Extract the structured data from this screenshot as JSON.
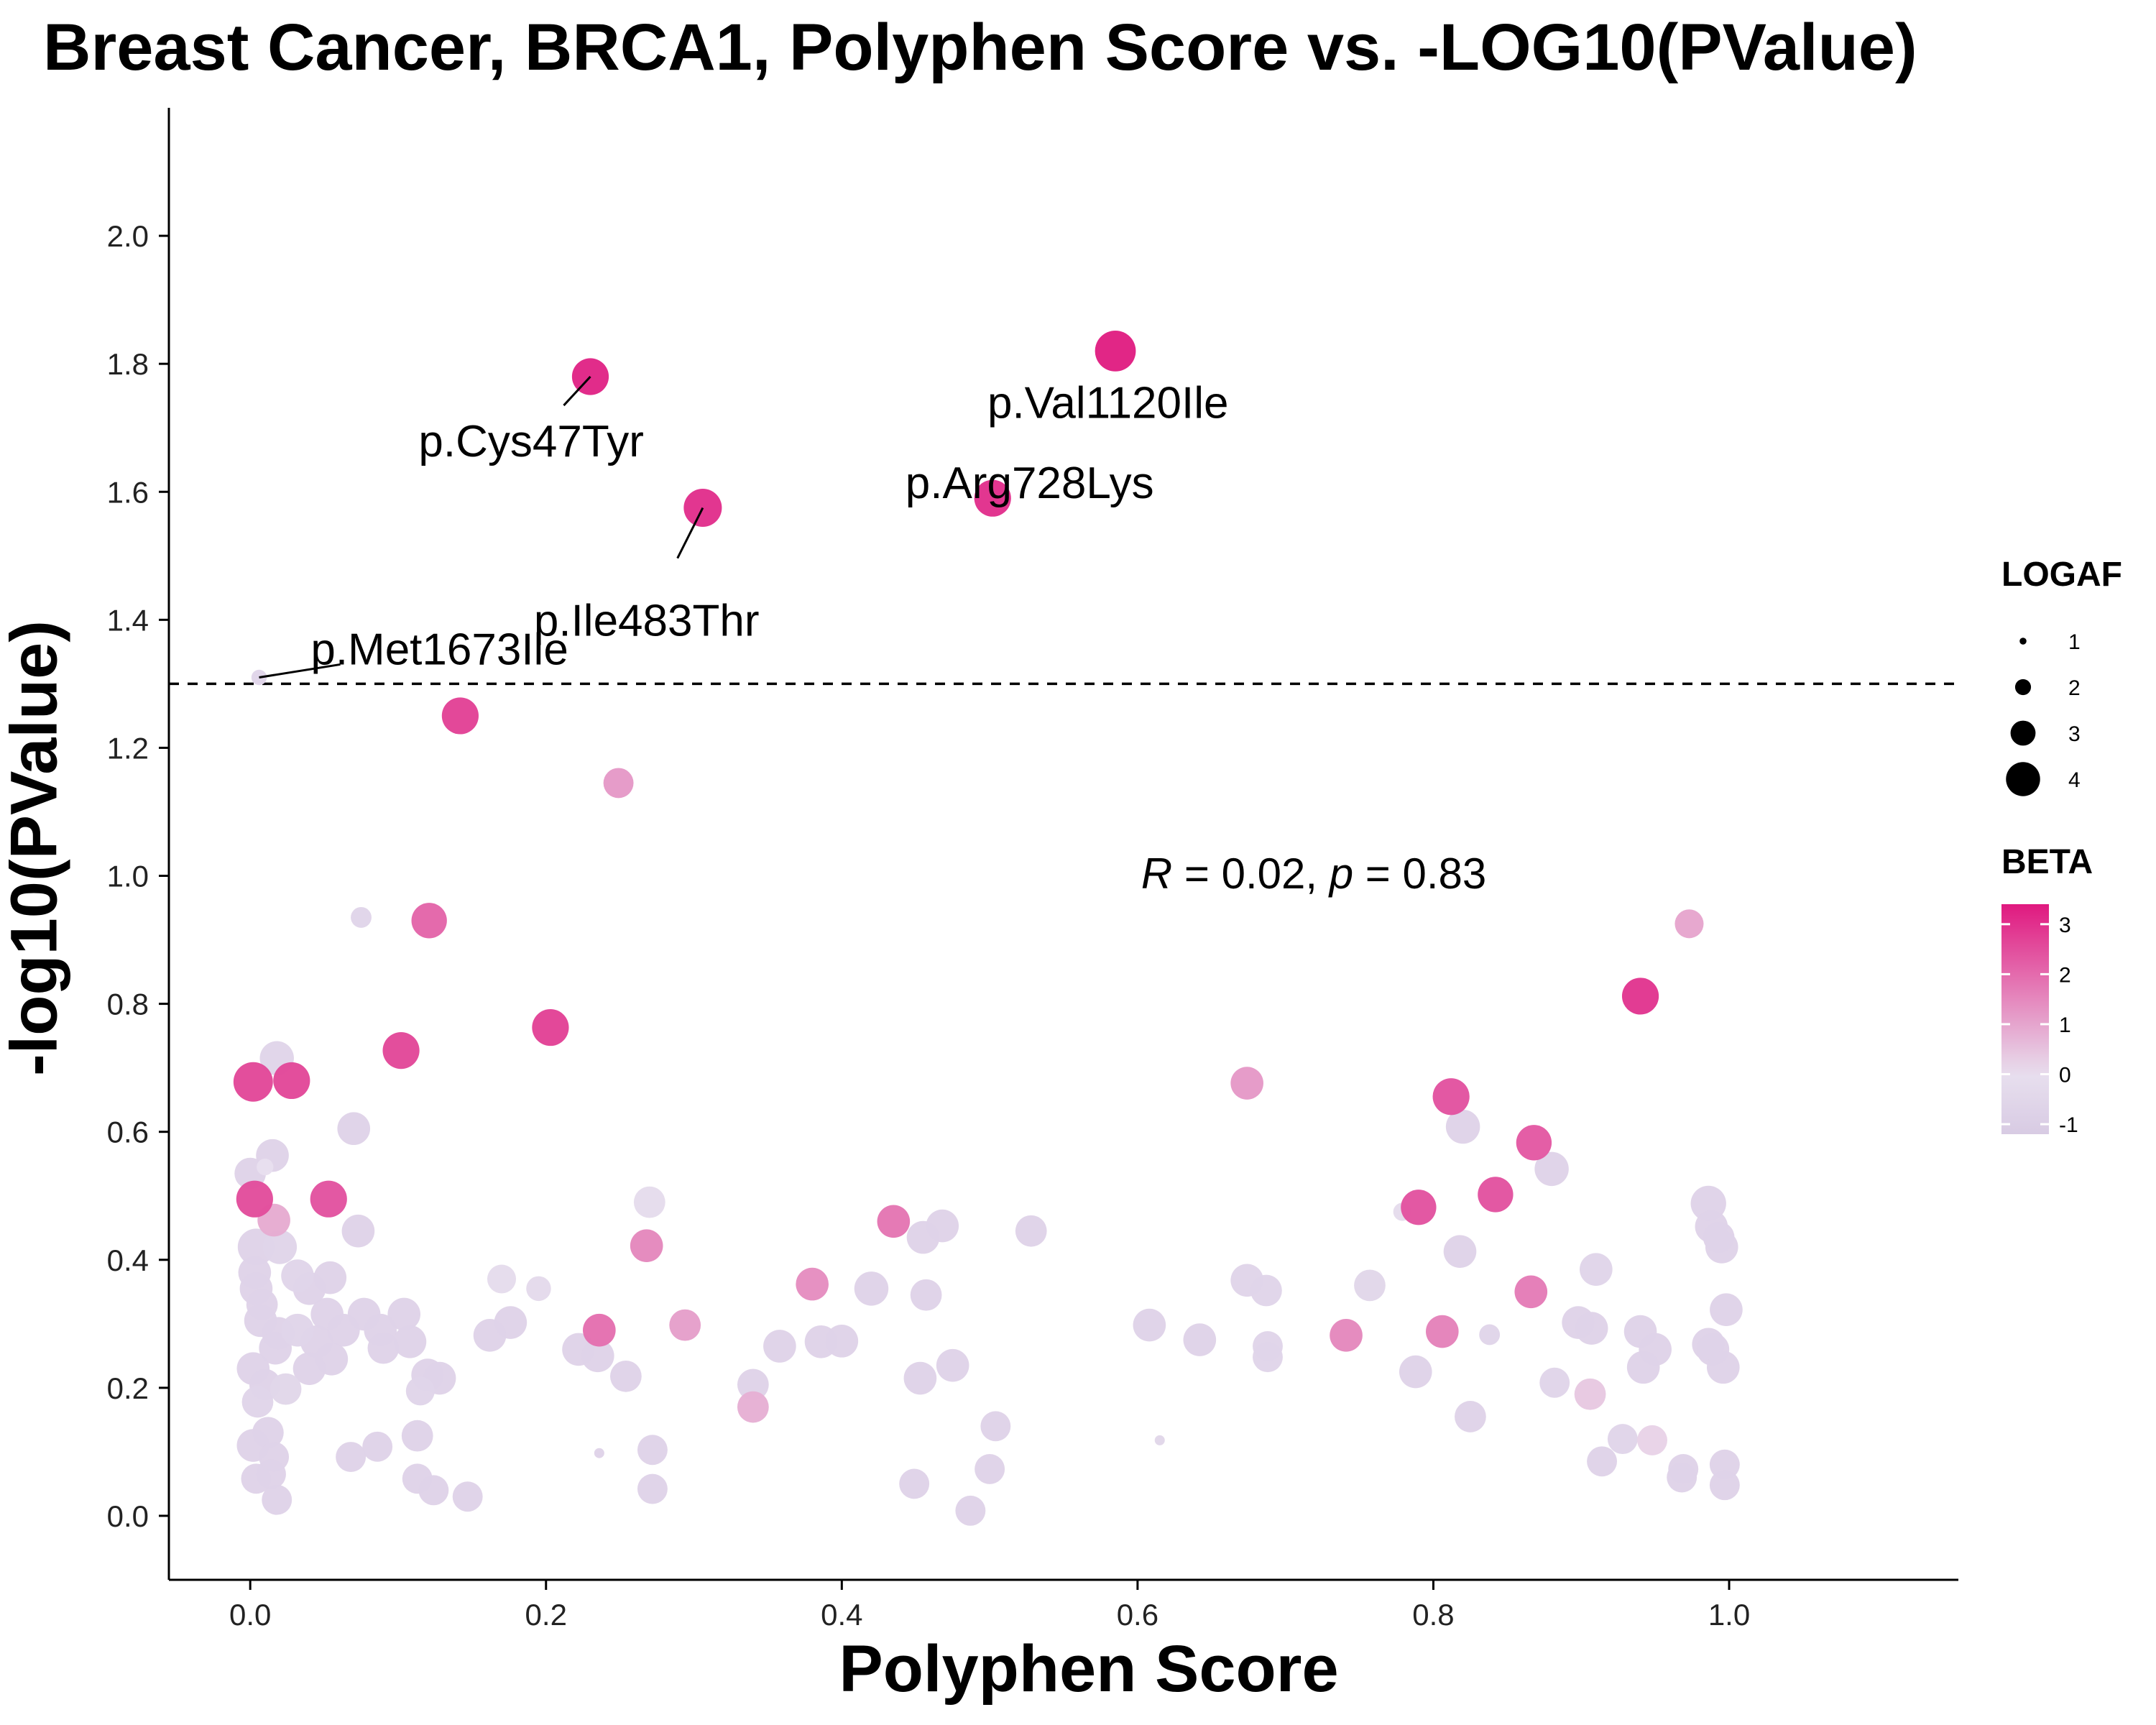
{
  "chart_data": {
    "type": "scatter",
    "title": "Breast Cancer, BRCA1, Polyphen Score vs. -LOG10(PValue)",
    "xlabel": "Polyphen Score",
    "ylabel": "-log10(PValue)",
    "xlim": [
      -0.055,
      1.155
    ],
    "ylim": [
      -0.1,
      2.2
    ],
    "x_ticks": [
      0.0,
      0.2,
      0.4,
      0.6,
      0.8,
      1.0
    ],
    "x_tick_labels": [
      "0.0",
      "0.2",
      "0.4",
      "0.6",
      "0.8",
      "1.0"
    ],
    "y_ticks": [
      0.0,
      0.2,
      0.4,
      0.6,
      0.8,
      1.0,
      1.2,
      1.4,
      1.6,
      1.8,
      2.0
    ],
    "y_tick_labels": [
      "0.0",
      "0.2",
      "0.4",
      "0.6",
      "0.8",
      "1.0",
      "1.2",
      "1.4",
      "1.6",
      "1.8",
      "2.0"
    ],
    "grid": false,
    "reference_line": {
      "y": 1.3,
      "style": "dashed"
    },
    "stat_annotation": {
      "r_symbol": "R",
      "r_value": "0.02",
      "p_symbol": "p",
      "p_value": "0.83",
      "x": 0.6,
      "y": 1.0
    },
    "legend_position": "right",
    "size_legend": {
      "title": "LOGAF",
      "values": [
        1,
        2,
        3,
        4
      ],
      "labels": [
        "1",
        "2",
        "3",
        "4"
      ]
    },
    "color_legend": {
      "title": "BETA",
      "min": -1.2,
      "max": 3.4,
      "ticks": [
        3,
        2,
        1,
        0,
        -1
      ],
      "tick_labels": [
        "3",
        "2",
        "1",
        "0",
        "-1"
      ],
      "low_color": "#d8cbe3",
      "mid_color": "#e8dfee",
      "high_color": "#e0197f"
    },
    "annotations": [
      {
        "text": "p.Cys47Tyr",
        "point": [
          0.23,
          1.78
        ],
        "label": [
          0.19,
          1.68
        ],
        "leader": true
      },
      {
        "text": "p.Val1120Ile",
        "point": [
          0.585,
          1.82
        ],
        "label": [
          0.58,
          1.74
        ],
        "leader": false
      },
      {
        "text": "p.Arg728Lys",
        "point": [
          0.502,
          1.59
        ],
        "label": [
          0.527,
          1.615
        ],
        "leader": false
      },
      {
        "text": "p.Ile483Thr",
        "point": [
          0.306,
          1.575
        ],
        "label": [
          0.268,
          1.4
        ],
        "leader": true
      },
      {
        "text": "p.Met1673Ile",
        "point": [
          0.006,
          1.31
        ],
        "label": [
          0.128,
          1.355
        ],
        "leader": true
      }
    ],
    "points": [
      {
        "x": 0.23,
        "y": 1.78,
        "logaf": 3.0,
        "beta": 3.2
      },
      {
        "x": 0.585,
        "y": 1.82,
        "logaf": 3.3,
        "beta": 3.3
      },
      {
        "x": 0.502,
        "y": 1.59,
        "logaf": 3.0,
        "beta": 3.0
      },
      {
        "x": 0.306,
        "y": 1.575,
        "logaf": 3.1,
        "beta": 3.0
      },
      {
        "x": 0.006,
        "y": 1.31,
        "logaf": 1.4,
        "beta": -0.6
      },
      {
        "x": 0.142,
        "y": 1.25,
        "logaf": 3.0,
        "beta": 2.7
      },
      {
        "x": 0.249,
        "y": 1.145,
        "logaf": 2.5,
        "beta": 1.2
      },
      {
        "x": 0.075,
        "y": 0.935,
        "logaf": 1.8,
        "beta": -0.6
      },
      {
        "x": 0.121,
        "y": 0.93,
        "logaf": 2.9,
        "beta": 2.1
      },
      {
        "x": 0.973,
        "y": 0.925,
        "logaf": 2.4,
        "beta": 1.0
      },
      {
        "x": 0.94,
        "y": 0.812,
        "logaf": 3.0,
        "beta": 2.9
      },
      {
        "x": 0.203,
        "y": 0.763,
        "logaf": 3.0,
        "beta": 2.7
      },
      {
        "x": 0.102,
        "y": 0.727,
        "logaf": 3.0,
        "beta": 2.6
      },
      {
        "x": 0.018,
        "y": 0.715,
        "logaf": 2.8,
        "beta": -0.6
      },
      {
        "x": 0.002,
        "y": 0.678,
        "logaf": 3.2,
        "beta": 2.6
      },
      {
        "x": 0.028,
        "y": 0.68,
        "logaf": 3.0,
        "beta": 2.6
      },
      {
        "x": 0.674,
        "y": 0.676,
        "logaf": 2.7,
        "beta": 1.2
      },
      {
        "x": 0.812,
        "y": 0.655,
        "logaf": 3.0,
        "beta": 2.4
      },
      {
        "x": 0.07,
        "y": 0.605,
        "logaf": 2.7,
        "beta": -0.7
      },
      {
        "x": 0.82,
        "y": 0.608,
        "logaf": 2.8,
        "beta": -0.7
      },
      {
        "x": 0.868,
        "y": 0.583,
        "logaf": 2.9,
        "beta": 2.3
      },
      {
        "x": 0.015,
        "y": 0.563,
        "logaf": 2.7,
        "beta": -0.7
      },
      {
        "x": 0.01,
        "y": 0.545,
        "logaf": 1.5,
        "beta": 0.0
      },
      {
        "x": 0.0,
        "y": 0.535,
        "logaf": 2.6,
        "beta": -0.7
      },
      {
        "x": 0.88,
        "y": 0.542,
        "logaf": 2.8,
        "beta": -0.7
      },
      {
        "x": 0.003,
        "y": 0.495,
        "logaf": 3.0,
        "beta": 2.5
      },
      {
        "x": 0.053,
        "y": 0.495,
        "logaf": 3.0,
        "beta": 2.4
      },
      {
        "x": 0.27,
        "y": 0.49,
        "logaf": 2.6,
        "beta": -0.2
      },
      {
        "x": 0.842,
        "y": 0.502,
        "logaf": 2.9,
        "beta": 2.4
      },
      {
        "x": 0.986,
        "y": 0.488,
        "logaf": 2.9,
        "beta": -0.7
      },
      {
        "x": 0.779,
        "y": 0.475,
        "logaf": 1.6,
        "beta": -0.2
      },
      {
        "x": 0.79,
        "y": 0.482,
        "logaf": 2.9,
        "beta": 2.4
      },
      {
        "x": 0.016,
        "y": 0.462,
        "logaf": 2.7,
        "beta": 0.9
      },
      {
        "x": 0.435,
        "y": 0.46,
        "logaf": 2.7,
        "beta": 1.8
      },
      {
        "x": 0.468,
        "y": 0.453,
        "logaf": 2.7,
        "beta": -0.7
      },
      {
        "x": 0.988,
        "y": 0.452,
        "logaf": 2.7,
        "beta": -0.7
      },
      {
        "x": 0.073,
        "y": 0.445,
        "logaf": 2.7,
        "beta": -0.7
      },
      {
        "x": 0.528,
        "y": 0.445,
        "logaf": 2.6,
        "beta": -0.7
      },
      {
        "x": 0.455,
        "y": 0.435,
        "logaf": 2.7,
        "beta": -0.7
      },
      {
        "x": 0.993,
        "y": 0.435,
        "logaf": 2.6,
        "beta": -0.7
      },
      {
        "x": 0.004,
        "y": 0.42,
        "logaf": 3.0,
        "beta": -0.7
      },
      {
        "x": 0.02,
        "y": 0.42,
        "logaf": 2.8,
        "beta": -0.6
      },
      {
        "x": 0.268,
        "y": 0.422,
        "logaf": 2.7,
        "beta": 1.5
      },
      {
        "x": 0.995,
        "y": 0.42,
        "logaf": 2.7,
        "beta": -0.7
      },
      {
        "x": 0.818,
        "y": 0.413,
        "logaf": 2.7,
        "beta": -0.7
      },
      {
        "x": 0.003,
        "y": 0.38,
        "logaf": 2.7,
        "beta": -0.7
      },
      {
        "x": 0.032,
        "y": 0.375,
        "logaf": 2.7,
        "beta": -0.6
      },
      {
        "x": 0.054,
        "y": 0.372,
        "logaf": 2.7,
        "beta": -0.7
      },
      {
        "x": 0.17,
        "y": 0.37,
        "logaf": 2.4,
        "beta": -0.2
      },
      {
        "x": 0.674,
        "y": 0.368,
        "logaf": 2.7,
        "beta": -0.6
      },
      {
        "x": 0.91,
        "y": 0.385,
        "logaf": 2.7,
        "beta": -0.6
      },
      {
        "x": 0.38,
        "y": 0.362,
        "logaf": 2.7,
        "beta": 1.4
      },
      {
        "x": 0.42,
        "y": 0.355,
        "logaf": 2.8,
        "beta": -0.7
      },
      {
        "x": 0.195,
        "y": 0.355,
        "logaf": 2.1,
        "beta": -0.3
      },
      {
        "x": 0.004,
        "y": 0.355,
        "logaf": 2.7,
        "beta": -0.7
      },
      {
        "x": 0.04,
        "y": 0.355,
        "logaf": 2.7,
        "beta": -0.7
      },
      {
        "x": 0.687,
        "y": 0.352,
        "logaf": 2.6,
        "beta": -0.6
      },
      {
        "x": 0.757,
        "y": 0.36,
        "logaf": 2.6,
        "beta": -0.5
      },
      {
        "x": 0.457,
        "y": 0.345,
        "logaf": 2.6,
        "beta": -0.7
      },
      {
        "x": 0.866,
        "y": 0.35,
        "logaf": 2.7,
        "beta": 1.7
      },
      {
        "x": 0.008,
        "y": 0.33,
        "logaf": 2.6,
        "beta": -0.7
      },
      {
        "x": 0.052,
        "y": 0.315,
        "logaf": 2.7,
        "beta": -0.7
      },
      {
        "x": 0.077,
        "y": 0.315,
        "logaf": 2.7,
        "beta": -0.7
      },
      {
        "x": 0.104,
        "y": 0.315,
        "logaf": 2.7,
        "beta": -0.7
      },
      {
        "x": 0.998,
        "y": 0.322,
        "logaf": 2.7,
        "beta": -0.7
      },
      {
        "x": 0.007,
        "y": 0.305,
        "logaf": 2.7,
        "beta": -0.7
      },
      {
        "x": 0.176,
        "y": 0.302,
        "logaf": 2.7,
        "beta": -0.7
      },
      {
        "x": 0.294,
        "y": 0.298,
        "logaf": 2.6,
        "beta": 1.1
      },
      {
        "x": 0.608,
        "y": 0.298,
        "logaf": 2.7,
        "beta": -0.7
      },
      {
        "x": 0.898,
        "y": 0.302,
        "logaf": 2.7,
        "beta": -0.7
      },
      {
        "x": 0.907,
        "y": 0.293,
        "logaf": 2.7,
        "beta": -0.7
      },
      {
        "x": 0.019,
        "y": 0.285,
        "logaf": 2.7,
        "beta": -0.7
      },
      {
        "x": 0.032,
        "y": 0.29,
        "logaf": 2.7,
        "beta": -0.6
      },
      {
        "x": 0.063,
        "y": 0.29,
        "logaf": 2.7,
        "beta": -0.7
      },
      {
        "x": 0.088,
        "y": 0.29,
        "logaf": 2.7,
        "beta": -0.7
      },
      {
        "x": 0.236,
        "y": 0.29,
        "logaf": 2.7,
        "beta": 1.9
      },
      {
        "x": 0.162,
        "y": 0.282,
        "logaf": 2.7,
        "beta": -0.7
      },
      {
        "x": 0.741,
        "y": 0.282,
        "logaf": 2.7,
        "beta": 1.5
      },
      {
        "x": 0.806,
        "y": 0.288,
        "logaf": 2.7,
        "beta": 1.6
      },
      {
        "x": 0.838,
        "y": 0.283,
        "logaf": 1.8,
        "beta": -0.6
      },
      {
        "x": 0.94,
        "y": 0.288,
        "logaf": 2.7,
        "beta": -0.7
      },
      {
        "x": 0.642,
        "y": 0.275,
        "logaf": 2.7,
        "beta": -0.7
      },
      {
        "x": 0.386,
        "y": 0.272,
        "logaf": 2.7,
        "beta": -0.7
      },
      {
        "x": 0.4,
        "y": 0.273,
        "logaf": 2.7,
        "beta": -0.7
      },
      {
        "x": 0.108,
        "y": 0.272,
        "logaf": 2.7,
        "beta": -0.7
      },
      {
        "x": 0.045,
        "y": 0.272,
        "logaf": 2.7,
        "beta": -0.7
      },
      {
        "x": 0.017,
        "y": 0.262,
        "logaf": 2.7,
        "beta": -0.7
      },
      {
        "x": 0.09,
        "y": 0.262,
        "logaf": 2.6,
        "beta": -0.7
      },
      {
        "x": 0.358,
        "y": 0.265,
        "logaf": 2.7,
        "beta": -0.7
      },
      {
        "x": 0.986,
        "y": 0.268,
        "logaf": 2.7,
        "beta": -0.7
      },
      {
        "x": 0.688,
        "y": 0.265,
        "logaf": 2.5,
        "beta": -0.6
      },
      {
        "x": 0.222,
        "y": 0.26,
        "logaf": 2.7,
        "beta": -0.7
      },
      {
        "x": 0.95,
        "y": 0.26,
        "logaf": 2.7,
        "beta": -0.7
      },
      {
        "x": 0.989,
        "y": 0.26,
        "logaf": 2.7,
        "beta": -0.7
      },
      {
        "x": 0.235,
        "y": 0.25,
        "logaf": 2.7,
        "beta": -0.7
      },
      {
        "x": 0.055,
        "y": 0.245,
        "logaf": 2.7,
        "beta": -0.7
      },
      {
        "x": 0.688,
        "y": 0.248,
        "logaf": 2.5,
        "beta": -0.6
      },
      {
        "x": 0.002,
        "y": 0.23,
        "logaf": 2.7,
        "beta": -0.7
      },
      {
        "x": 0.04,
        "y": 0.23,
        "logaf": 2.7,
        "beta": -0.7
      },
      {
        "x": 0.475,
        "y": 0.235,
        "logaf": 2.7,
        "beta": -0.7
      },
      {
        "x": 0.942,
        "y": 0.232,
        "logaf": 2.7,
        "beta": -0.7
      },
      {
        "x": 0.996,
        "y": 0.232,
        "logaf": 2.7,
        "beta": -0.7
      },
      {
        "x": 0.788,
        "y": 0.225,
        "logaf": 2.7,
        "beta": -0.7
      },
      {
        "x": 0.12,
        "y": 0.22,
        "logaf": 2.7,
        "beta": -0.7
      },
      {
        "x": 0.254,
        "y": 0.218,
        "logaf": 2.6,
        "beta": -0.7
      },
      {
        "x": 0.128,
        "y": 0.215,
        "logaf": 2.7,
        "beta": -0.7
      },
      {
        "x": 0.453,
        "y": 0.215,
        "logaf": 2.7,
        "beta": -0.7
      },
      {
        "x": 0.882,
        "y": 0.208,
        "logaf": 2.5,
        "beta": -0.6
      },
      {
        "x": 0.01,
        "y": 0.205,
        "logaf": 2.6,
        "beta": -0.7
      },
      {
        "x": 0.34,
        "y": 0.205,
        "logaf": 2.6,
        "beta": -0.7
      },
      {
        "x": 0.024,
        "y": 0.198,
        "logaf": 2.6,
        "beta": -0.5
      },
      {
        "x": 0.115,
        "y": 0.195,
        "logaf": 2.4,
        "beta": -0.6
      },
      {
        "x": 0.906,
        "y": 0.19,
        "logaf": 2.6,
        "beta": 0.4
      },
      {
        "x": 0.005,
        "y": 0.178,
        "logaf": 2.6,
        "beta": -0.6
      },
      {
        "x": 0.34,
        "y": 0.17,
        "logaf": 2.6,
        "beta": 0.8
      },
      {
        "x": 0.825,
        "y": 0.155,
        "logaf": 2.6,
        "beta": -0.7
      },
      {
        "x": 0.504,
        "y": 0.14,
        "logaf": 2.5,
        "beta": -0.7
      },
      {
        "x": 0.012,
        "y": 0.13,
        "logaf": 2.6,
        "beta": -0.7
      },
      {
        "x": 0.113,
        "y": 0.125,
        "logaf": 2.6,
        "beta": -0.7
      },
      {
        "x": 0.928,
        "y": 0.12,
        "logaf": 2.5,
        "beta": -0.6
      },
      {
        "x": 0.948,
        "y": 0.118,
        "logaf": 2.5,
        "beta": 0.2
      },
      {
        "x": 0.002,
        "y": 0.11,
        "logaf": 2.7,
        "beta": -0.7
      },
      {
        "x": 0.086,
        "y": 0.108,
        "logaf": 2.5,
        "beta": -0.7
      },
      {
        "x": 0.272,
        "y": 0.103,
        "logaf": 2.5,
        "beta": -0.7
      },
      {
        "x": 0.236,
        "y": 0.098,
        "logaf": 1.0,
        "beta": -0.7
      },
      {
        "x": 0.068,
        "y": 0.092,
        "logaf": 2.5,
        "beta": -0.7
      },
      {
        "x": 0.016,
        "y": 0.092,
        "logaf": 2.5,
        "beta": -0.7
      },
      {
        "x": 0.615,
        "y": 0.118,
        "logaf": 1.0,
        "beta": -0.5
      },
      {
        "x": 0.914,
        "y": 0.085,
        "logaf": 2.5,
        "beta": -0.7
      },
      {
        "x": 0.997,
        "y": 0.08,
        "logaf": 2.5,
        "beta": -0.7
      },
      {
        "x": 0.5,
        "y": 0.073,
        "logaf": 2.5,
        "beta": -0.7
      },
      {
        "x": 0.969,
        "y": 0.073,
        "logaf": 2.5,
        "beta": -0.7
      },
      {
        "x": 0.014,
        "y": 0.065,
        "logaf": 2.5,
        "beta": -0.7
      },
      {
        "x": 0.004,
        "y": 0.058,
        "logaf": 2.5,
        "beta": -0.7
      },
      {
        "x": 0.113,
        "y": 0.058,
        "logaf": 2.5,
        "beta": -0.7
      },
      {
        "x": 0.968,
        "y": 0.06,
        "logaf": 2.5,
        "beta": -0.7
      },
      {
        "x": 0.449,
        "y": 0.05,
        "logaf": 2.5,
        "beta": -0.7
      },
      {
        "x": 0.997,
        "y": 0.048,
        "logaf": 2.5,
        "beta": -0.7
      },
      {
        "x": 0.272,
        "y": 0.042,
        "logaf": 2.5,
        "beta": -0.7
      },
      {
        "x": 0.124,
        "y": 0.04,
        "logaf": 2.5,
        "beta": -0.7
      },
      {
        "x": 0.147,
        "y": 0.03,
        "logaf": 2.5,
        "beta": -0.7
      },
      {
        "x": 0.018,
        "y": 0.025,
        "logaf": 2.5,
        "beta": -0.7
      },
      {
        "x": 0.487,
        "y": 0.008,
        "logaf": 2.5,
        "beta": -0.7
      }
    ]
  }
}
